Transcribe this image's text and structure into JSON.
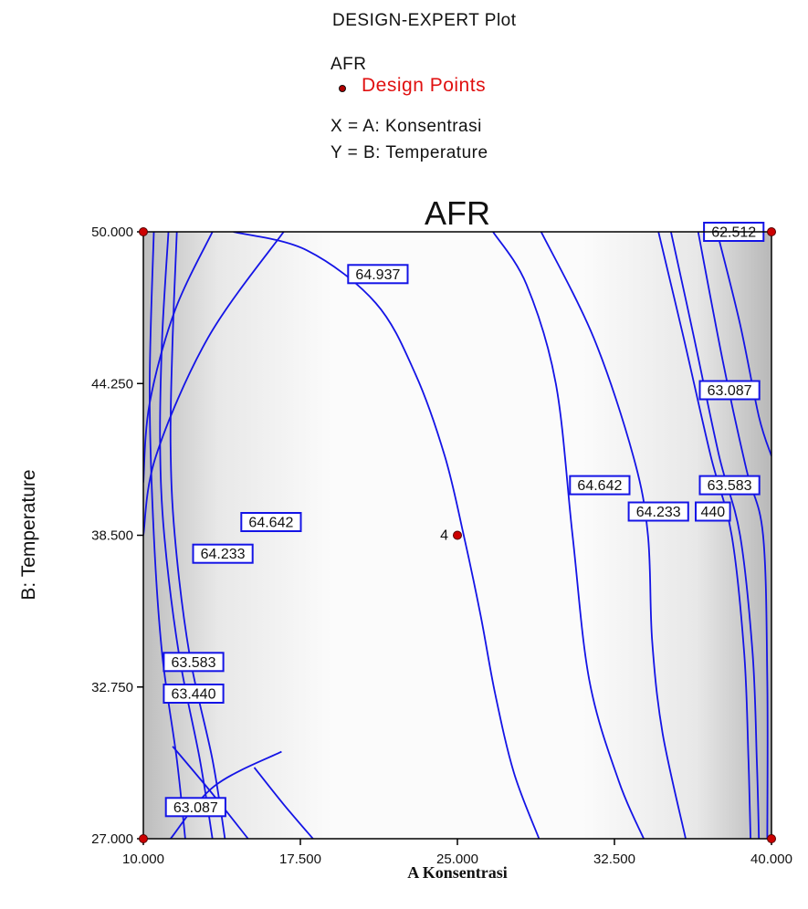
{
  "header": {
    "title": "DESIGN-EXPERT Plot",
    "response": "AFR",
    "design_points_label": "Design Points",
    "x_factor": "X = A: Konsentrasi",
    "y_factor": "Y = B: Temperature"
  },
  "colors": {
    "contour": "#1414e6",
    "design_point": "#cc0000",
    "label_border": "#1414e6",
    "frame": "#000000"
  },
  "chart_data": {
    "type": "contour",
    "title": "AFR",
    "xlabel": "A Konsentrasi",
    "ylabel": "B: Temperature",
    "xlim": [
      10,
      40
    ],
    "ylim": [
      27,
      50
    ],
    "x_ticks": [
      "10.000",
      "17.500",
      "25.000",
      "32.500",
      "40.000"
    ],
    "y_ticks": [
      "27.000",
      "32.750",
      "38.500",
      "44.250",
      "50.000"
    ],
    "x_tick_values": [
      10,
      17.5,
      25,
      32.5,
      40
    ],
    "y_tick_values": [
      27,
      32.75,
      38.5,
      44.25,
      50
    ],
    "contours": [
      {
        "level": "64.937",
        "curves": [
          [
            [
              14.3,
              50
            ],
            [
              17.8,
              49.3
            ],
            [
              21.1,
              47.3
            ],
            [
              23.0,
              44.6
            ],
            [
              24.4,
              41.5
            ],
            [
              25.3,
              38.5
            ],
            [
              26.1,
              35.5
            ],
            [
              26.8,
              32.5
            ],
            [
              27.7,
              29.5
            ],
            [
              28.9,
              27
            ]
          ],
          [
            [
              11.3,
              27
            ],
            [
              13.4,
              29.0
            ],
            [
              16.6,
              30.3
            ]
          ]
        ]
      },
      {
        "level": "64.642",
        "curves": [
          [
            [
              16.7,
              50
            ],
            [
              13.1,
              46
            ],
            [
              10.6,
              41.5
            ],
            [
              10.0,
              38.5
            ]
          ],
          [
            [
              26.7,
              50
            ],
            [
              28.3,
              48
            ],
            [
              29.7,
              44.25
            ],
            [
              30.5,
              38.5
            ],
            [
              31.3,
              33
            ],
            [
              32.7,
              29.2
            ],
            [
              33.9,
              27
            ]
          ],
          [
            [
              15.0,
              27
            ],
            [
              13.2,
              28.8
            ],
            [
              11.4,
              30.5
            ]
          ]
        ]
      },
      {
        "level": "64.233",
        "curves": [
          [
            [
              13.3,
              50
            ],
            [
              11.5,
              47
            ],
            [
              10.3,
              43.5
            ],
            [
              10.0,
              40.5
            ]
          ],
          [
            [
              29.0,
              50
            ],
            [
              31.5,
              46
            ],
            [
              33.4,
              41.5
            ],
            [
              34.1,
              38.5
            ],
            [
              34.3,
              34.5
            ],
            [
              34.8,
              31
            ],
            [
              35.9,
              27
            ]
          ],
          [
            [
              18.1,
              27
            ],
            [
              16.7,
              28.3
            ],
            [
              15.3,
              29.7
            ]
          ]
        ]
      },
      {
        "level": "63.583",
        "curves": [
          [
            [
              11.6,
              50
            ],
            [
              11.4,
              46
            ],
            [
              11.3,
              42
            ],
            [
              11.5,
              38.5
            ],
            [
              12.2,
              34
            ],
            [
              13.3,
              30
            ],
            [
              13.9,
              27
            ]
          ],
          [
            [
              34.6,
              50
            ],
            [
              35.8,
              46
            ],
            [
              37.1,
              41.5
            ],
            [
              38.1,
              38.5
            ],
            [
              38.7,
              34
            ],
            [
              38.9,
              30
            ],
            [
              39.0,
              27
            ]
          ]
        ]
      },
      {
        "level": "63.440",
        "curves": [
          [
            [
              11.2,
              50
            ],
            [
              10.9,
              46
            ],
            [
              10.8,
              42
            ],
            [
              11.0,
              38.5
            ],
            [
              11.7,
              34
            ],
            [
              12.7,
              30
            ],
            [
              13.3,
              27
            ]
          ],
          [
            [
              35.2,
              50
            ],
            [
              36.3,
              46
            ],
            [
              37.5,
              41.5
            ],
            [
              38.5,
              38.5
            ],
            [
              39.1,
              34
            ],
            [
              39.3,
              30
            ],
            [
              39.4,
              27
            ]
          ]
        ]
      },
      {
        "level": "63.087",
        "curves": [
          [
            [
              10.5,
              50
            ],
            [
              10.3,
              44
            ],
            [
              10.5,
              38.5
            ],
            [
              10.9,
              34
            ],
            [
              11.6,
              30
            ],
            [
              12.0,
              27
            ]
          ],
          [
            [
              36.5,
              50
            ],
            [
              37.7,
              45
            ],
            [
              38.8,
              41
            ],
            [
              39.6,
              38.5
            ],
            [
              39.8,
              33
            ],
            [
              39.8,
              27
            ]
          ]
        ]
      },
      {
        "level": "62.512",
        "curves": [
          [
            [
              37.4,
              50
            ],
            [
              38.5,
              46.5
            ],
            [
              39.4,
              43
            ],
            [
              40.0,
              41.5
            ]
          ]
        ]
      }
    ],
    "contour_labels": [
      {
        "text": "64.937",
        "x": 21.2,
        "y": 48.4
      },
      {
        "text": "64.642",
        "x": 16.1,
        "y": 39.0
      },
      {
        "text": "64.233",
        "x": 13.8,
        "y": 37.8
      },
      {
        "text": "63.583",
        "x": 12.4,
        "y": 33.7
      },
      {
        "text": "63.440",
        "x": 12.4,
        "y": 32.5
      },
      {
        "text": "63.087",
        "x": 12.5,
        "y": 28.2
      },
      {
        "text": "64.642",
        "x": 31.8,
        "y": 40.4
      },
      {
        "text": "64.233",
        "x": 34.6,
        "y": 39.4
      },
      {
        "text": "440",
        "x": 37.2,
        "y": 39.4
      },
      {
        "text": "63.583",
        "x": 38.0,
        "y": 40.4
      },
      {
        "text": "63.087",
        "x": 38.0,
        "y": 44.0
      },
      {
        "text": "62.512",
        "x": 38.2,
        "y": 50.0
      }
    ],
    "design_points": [
      {
        "x": 10,
        "y": 50,
        "label": ""
      },
      {
        "x": 40,
        "y": 50,
        "label": ""
      },
      {
        "x": 10,
        "y": 27,
        "label": ""
      },
      {
        "x": 40,
        "y": 27,
        "label": ""
      },
      {
        "x": 25,
        "y": 38.5,
        "label": "4"
      }
    ]
  }
}
